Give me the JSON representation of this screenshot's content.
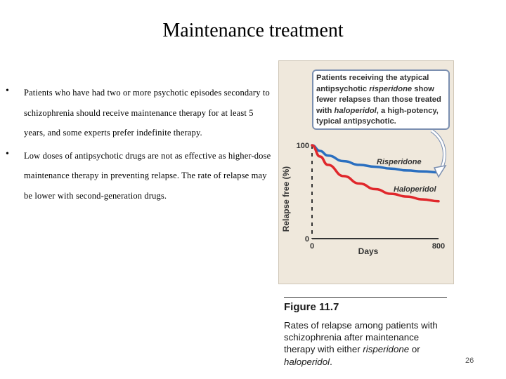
{
  "slide": {
    "title": "Maintenance treatment",
    "page_number": "26"
  },
  "bullets": [
    {
      "text": "Patients who have had two or more psychotic episodes secondary to schizophrenia should receive maintenance therapy for at least 5 years, and some experts prefer indefinite therapy."
    },
    {
      "text": "Low doses of antipsychotic drugs are not as effective as higher-dose maintenance therapy in preventing relapse. The rate of relapse may be lower with second-generation drugs."
    }
  ],
  "figure": {
    "callout": {
      "p1": "Patients receiving the atypical antipsychotic ",
      "drug1": "risperidone",
      "p2": " show fewer relapses than those treated with ",
      "drug2": "haloperidol",
      "p3": ", a high-potency, typical antipsychotic."
    },
    "caption_title": "Figure 11.7",
    "caption": {
      "p1": "Rates of relapse among patients with schizophrenia after maintenance therapy with either ",
      "drug1": "risperidone",
      "p2": " or ",
      "drug2": "haloperidol",
      "p3": "."
    },
    "colors": {
      "risperidone": "#2a6fc0",
      "haloperidol": "#e0272b",
      "panel": "#efe8dc"
    }
  },
  "chart_data": {
    "type": "line",
    "xlabel": "Days",
    "ylabel": "Relapse free (%)",
    "xlim": [
      0,
      800
    ],
    "ylim": [
      0,
      100
    ],
    "x_ticks": [
      0,
      800
    ],
    "y_ticks": [
      0,
      100
    ],
    "series": [
      {
        "name": "Risperidone",
        "x": [
          0,
          50,
          100,
          200,
          300,
          400,
          500,
          600,
          700,
          800
        ],
        "values": [
          100,
          94,
          89,
          83,
          79,
          77,
          75,
          73,
          72,
          71
        ]
      },
      {
        "name": "Haloperidol",
        "x": [
          0,
          50,
          100,
          200,
          300,
          400,
          500,
          600,
          700,
          800
        ],
        "values": [
          100,
          88,
          79,
          67,
          59,
          53,
          48,
          45,
          42,
          40
        ]
      }
    ]
  }
}
